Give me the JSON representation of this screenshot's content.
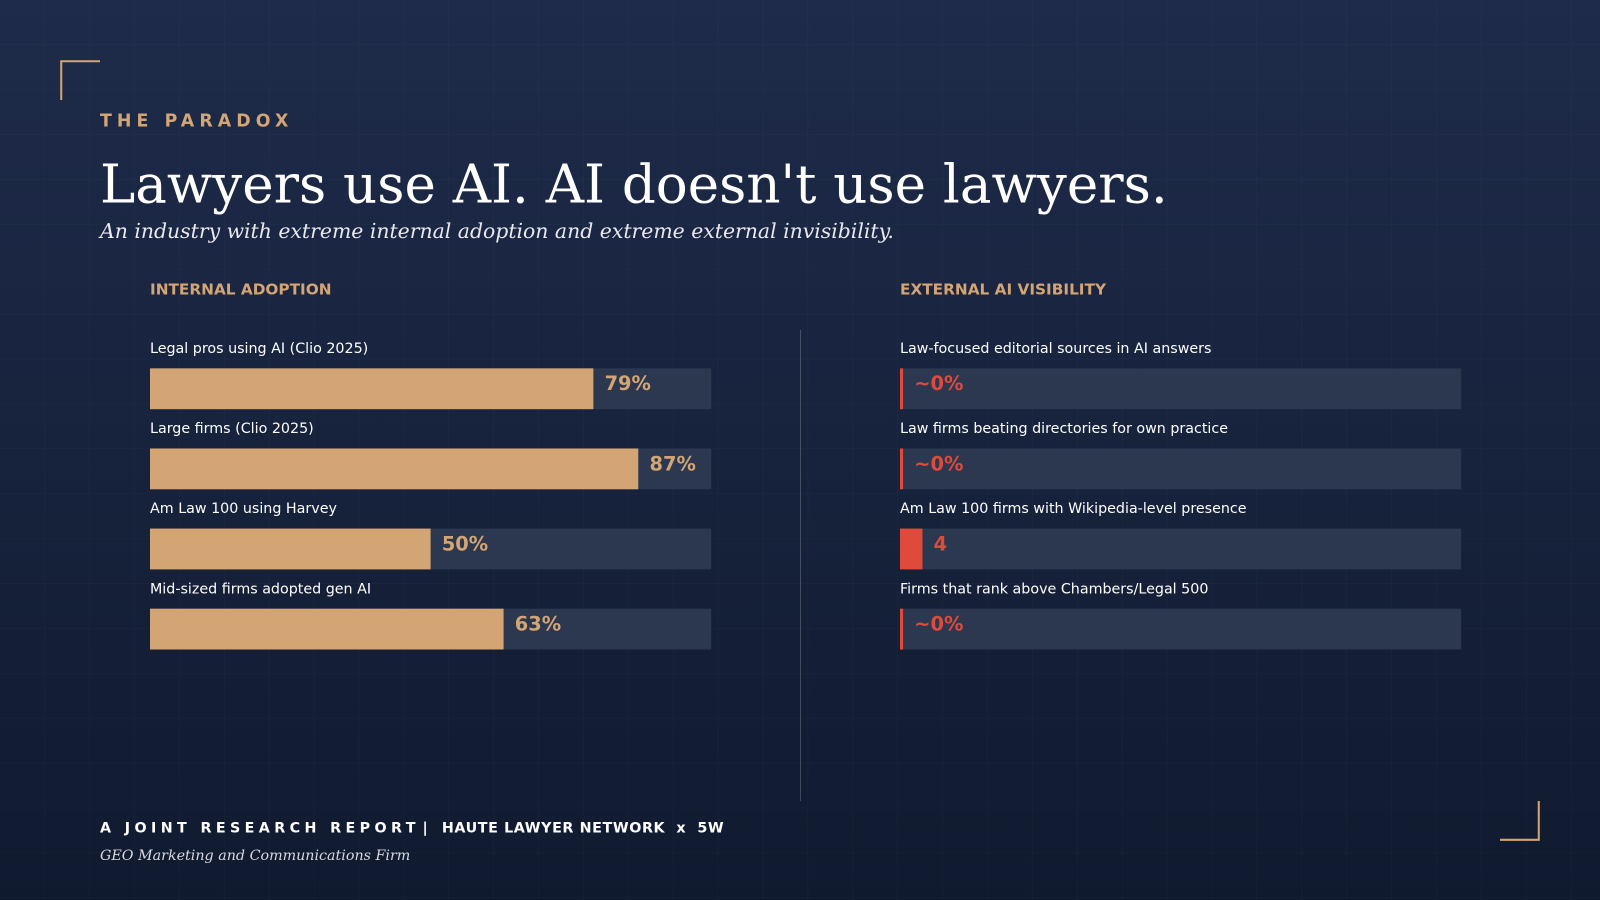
{
  "header": {
    "kicker": "THE PARADOX",
    "title": "Lawyers use AI. AI doesn't use lawyers.",
    "subtitle": "An industry with extreme internal adoption and extreme external invisibility."
  },
  "chart_data": [
    {
      "type": "bar",
      "orientation": "horizontal",
      "title": "INTERNAL ADOPTION",
      "categories": [
        "Legal pros using AI (Clio 2025)",
        "Large firms (Clio 2025)",
        "Am Law 100 using Harvey",
        "Mid-sized firms adopted gen AI"
      ],
      "values": [
        79,
        87,
        50,
        63
      ],
      "value_labels": [
        "79%",
        "87%",
        "50%",
        "63%"
      ],
      "color": "#d4a574",
      "xlim": [
        0,
        100
      ]
    },
    {
      "type": "bar",
      "orientation": "horizontal",
      "title": "EXTERNAL AI VISIBILITY",
      "categories": [
        "Law-focused editorial sources in AI answers",
        "Law firms beating directories for own practice",
        "Am Law 100 firms with Wikipedia-level presence",
        "Firms that rank above Chambers/Legal 500"
      ],
      "values": [
        0,
        0,
        4,
        0
      ],
      "value_labels": [
        "~0%",
        "~0%",
        "4",
        "~0%"
      ],
      "color": "#e04a3a",
      "xlim": [
        0,
        100
      ]
    }
  ],
  "footer": {
    "report": "A JOINT RESEARCH REPORT",
    "separator": "|",
    "partners": "HAUTE LAWYER NETWORK  x  5W",
    "tagline": "GEO Marketing and Communications Firm"
  }
}
